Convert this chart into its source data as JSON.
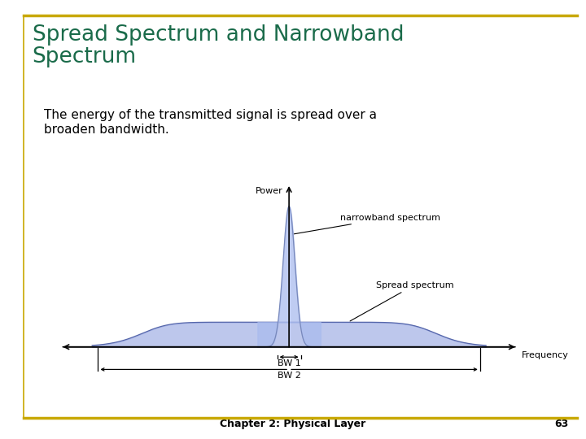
{
  "title_line1": "Spread Spectrum and Narrowband",
  "title_line2": "Spectrum",
  "title_color": "#1a6b4a",
  "bullet_text_line1": "The energy of the transmitted signal is spread over a",
  "bullet_text_line2": "broaden bandwidth.",
  "bullet_color": "#8B4513",
  "background_color": "#ffffff",
  "border_color_top": "#c8a800",
  "border_color_bottom": "#c8a800",
  "footer_text": "Chapter 2: Physical Layer",
  "page_number": "63",
  "label_power": "Power",
  "label_narrowband": "narrowband spectrum",
  "label_spread": "Spread spectrum",
  "label_frequency": "Frequency",
  "label_bw1": "BW 1",
  "label_bw2": "BW 2",
  "spread_fill_color": "#8899dd",
  "spread_fill_alpha": 0.55,
  "narrow_fill_color": "#aabbee",
  "narrow_fill_alpha": 0.75,
  "spread_edge_color": "#5566aa",
  "narrow_edge_color": "#7788bb"
}
